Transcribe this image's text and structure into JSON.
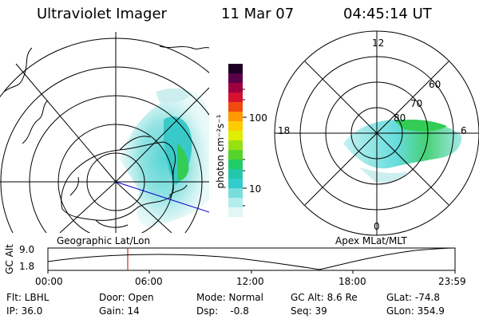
{
  "header": {
    "instrument": "Ultraviolet Imager",
    "date": "11 Mar 07",
    "time": "04:45:14 UT"
  },
  "colors": {
    "background": "#ffffff",
    "ink": "#000000",
    "aurora_light": "#b8ecec",
    "aurora_mid": "#5fd8d8",
    "aurora_bright": "#33cc44",
    "satellite_track": "#0000cc",
    "time_cursor": "#cc0000",
    "colorbar_stops": [
      "#e8f8f8",
      "#99e6e6",
      "#33cccc",
      "#22cc66",
      "#66dd22",
      "#ccee00",
      "#ffcc00",
      "#ff8800",
      "#ee2200",
      "#cc0033",
      "#88004a",
      "#2a0033"
    ]
  },
  "colorbar": {
    "label": "photon cm⁻²s⁻¹",
    "ticks": [
      "100",
      "10"
    ]
  },
  "left_panel": {
    "caption": "Geographic Lat/Lon"
  },
  "right_panel": {
    "caption": "Apex MLat/MLT",
    "mlt_labels": {
      "top": "12",
      "left": "18",
      "right": "6",
      "bottom": "0"
    },
    "lat_labels": [
      "60",
      "70",
      "80"
    ]
  },
  "altitude_plot": {
    "ylabel": "GC Alt",
    "ymax": "9.0",
    "ymin": "1.8",
    "xticks": [
      "00:00",
      "06:00",
      "12:00",
      "18:00",
      "23:59"
    ],
    "cursor_time": "04:45"
  },
  "status": {
    "filter": "Flt: LBHL",
    "door": "Door: Open",
    "mode": "Mode: Normal",
    "gc_alt": "GC Alt: 8.6 Re",
    "glat": "GLat: -74.8",
    "ip": "IP: 36.0",
    "gain": "Gain: 14",
    "dsp": "Dsp:    -0.8",
    "seq": "Seq: 39",
    "glon": "GLon: 354.9"
  }
}
